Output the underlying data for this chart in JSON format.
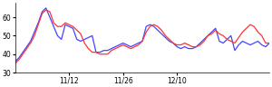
{
  "blue_y": [
    36,
    38,
    41,
    44,
    47,
    52,
    57,
    63,
    65,
    60,
    55,
    50,
    48,
    56,
    55,
    54,
    48,
    47,
    48,
    49,
    50,
    41,
    41,
    42,
    42,
    43,
    44,
    45,
    46,
    45,
    44,
    45,
    46,
    47,
    55,
    56,
    55,
    53,
    51,
    49,
    47,
    46,
    44,
    43,
    44,
    43,
    43,
    44,
    46,
    48,
    50,
    52,
    54,
    47,
    46,
    48,
    50,
    42,
    45,
    47,
    46,
    45,
    46,
    47,
    45,
    44,
    46
  ],
  "red_y": [
    35,
    37,
    40,
    43,
    46,
    50,
    56,
    62,
    64,
    63,
    57,
    55,
    55,
    57,
    56,
    55,
    53,
    51,
    46,
    43,
    41,
    41,
    40,
    40,
    40,
    42,
    43,
    44,
    45,
    44,
    43,
    44,
    45,
    47,
    52,
    55,
    56,
    55,
    53,
    50,
    48,
    46,
    45,
    45,
    46,
    45,
    44,
    44,
    45,
    47,
    50,
    51,
    53,
    51,
    50,
    48,
    47,
    46,
    49,
    52,
    54,
    56,
    55,
    52,
    50,
    46,
    46
  ],
  "xlim": [
    0,
    66
  ],
  "ylim": [
    30,
    68
  ],
  "yticks": [
    30,
    40,
    50,
    60
  ],
  "xtick_positions": [
    14,
    28,
    42
  ],
  "xtick_labels": [
    "11/12",
    "11/26",
    "12/10"
  ],
  "blue_color": "#4444ff",
  "red_color": "#ff3333",
  "linewidth": 0.9
}
